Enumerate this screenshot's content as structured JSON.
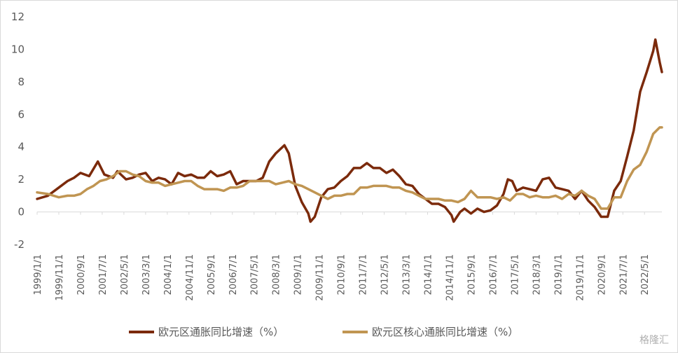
{
  "chart_data": {
    "type": "line",
    "title": "",
    "xlabel": "",
    "ylabel": "",
    "ylim": [
      -2,
      12
    ],
    "yticks": [
      -2,
      0,
      2,
      4,
      6,
      8,
      10,
      12
    ],
    "grid": false,
    "legend_position": "bottom",
    "x_tick_labels": [
      "1999/1/1",
      "1999/11/1",
      "2000/9/1",
      "2001/7/1",
      "2002/5/1",
      "2003/3/1",
      "2004/1/1",
      "2004/11/1",
      "2005/9/1",
      "2006/7/1",
      "2007/5/1",
      "2008/3/1",
      "2009/1/1",
      "2009/11/1",
      "2010/9/1",
      "2011/7/1",
      "2012/5/1",
      "2013/3/1",
      "2014/1/1",
      "2014/11/1",
      "2015/9/1",
      "2016/7/1",
      "2017/5/1",
      "2018/3/1",
      "2019/1/1",
      "2019/11/1",
      "2020/9/1",
      "2021/7/1",
      "2022/5/1"
    ],
    "series": [
      {
        "name": "欧元区通胀同比增速（%）",
        "color": "#7b2a0b",
        "points": [
          [
            "1999/1",
            0.8
          ],
          [
            "1999/6",
            1.0
          ],
          [
            "1999/11",
            1.5
          ],
          [
            "2000/3",
            1.9
          ],
          [
            "2000/6",
            2.1
          ],
          [
            "2000/9",
            2.4
          ],
          [
            "2001/1",
            2.2
          ],
          [
            "2001/5",
            3.1
          ],
          [
            "2001/8",
            2.3
          ],
          [
            "2001/12",
            2.1
          ],
          [
            "2002/2",
            2.5
          ],
          [
            "2002/6",
            2.0
          ],
          [
            "2002/9",
            2.1
          ],
          [
            "2002/12",
            2.3
          ],
          [
            "2003/3",
            2.4
          ],
          [
            "2003/6",
            1.9
          ],
          [
            "2003/9",
            2.1
          ],
          [
            "2003/12",
            2.0
          ],
          [
            "2004/3",
            1.7
          ],
          [
            "2004/6",
            2.4
          ],
          [
            "2004/9",
            2.2
          ],
          [
            "2004/12",
            2.3
          ],
          [
            "2005/3",
            2.1
          ],
          [
            "2005/6",
            2.1
          ],
          [
            "2005/9",
            2.5
          ],
          [
            "2005/12",
            2.2
          ],
          [
            "2006/3",
            2.3
          ],
          [
            "2006/6",
            2.5
          ],
          [
            "2006/9",
            1.7
          ],
          [
            "2006/12",
            1.9
          ],
          [
            "2007/3",
            1.9
          ],
          [
            "2007/6",
            1.9
          ],
          [
            "2007/9",
            2.1
          ],
          [
            "2007/12",
            3.1
          ],
          [
            "2008/3",
            3.6
          ],
          [
            "2008/7",
            4.1
          ],
          [
            "2008/9",
            3.6
          ],
          [
            "2008/12",
            1.6
          ],
          [
            "2009/3",
            0.6
          ],
          [
            "2009/6",
            -0.1
          ],
          [
            "2009/7",
            -0.6
          ],
          [
            "2009/9",
            -0.3
          ],
          [
            "2009/12",
            0.9
          ],
          [
            "2010/3",
            1.4
          ],
          [
            "2010/6",
            1.5
          ],
          [
            "2010/9",
            1.9
          ],
          [
            "2010/12",
            2.2
          ],
          [
            "2011/3",
            2.7
          ],
          [
            "2011/6",
            2.7
          ],
          [
            "2011/9",
            3.0
          ],
          [
            "2011/12",
            2.7
          ],
          [
            "2012/3",
            2.7
          ],
          [
            "2012/6",
            2.4
          ],
          [
            "2012/9",
            2.6
          ],
          [
            "2012/12",
            2.2
          ],
          [
            "2013/3",
            1.7
          ],
          [
            "2013/6",
            1.6
          ],
          [
            "2013/9",
            1.1
          ],
          [
            "2013/12",
            0.8
          ],
          [
            "2014/3",
            0.5
          ],
          [
            "2014/6",
            0.5
          ],
          [
            "2014/9",
            0.3
          ],
          [
            "2014/12",
            -0.2
          ],
          [
            "2015/1",
            -0.6
          ],
          [
            "2015/4",
            0.0
          ],
          [
            "2015/6",
            0.2
          ],
          [
            "2015/9",
            -0.1
          ],
          [
            "2015/12",
            0.2
          ],
          [
            "2016/3",
            0.0
          ],
          [
            "2016/6",
            0.1
          ],
          [
            "2016/9",
            0.4
          ],
          [
            "2016/12",
            1.1
          ],
          [
            "2017/2",
            2.0
          ],
          [
            "2017/4",
            1.9
          ],
          [
            "2017/6",
            1.3
          ],
          [
            "2017/9",
            1.5
          ],
          [
            "2017/12",
            1.4
          ],
          [
            "2018/3",
            1.3
          ],
          [
            "2018/6",
            2.0
          ],
          [
            "2018/9",
            2.1
          ],
          [
            "2018/12",
            1.5
          ],
          [
            "2019/3",
            1.4
          ],
          [
            "2019/6",
            1.3
          ],
          [
            "2019/9",
            0.8
          ],
          [
            "2019/12",
            1.3
          ],
          [
            "2020/3",
            0.7
          ],
          [
            "2020/6",
            0.3
          ],
          [
            "2020/9",
            -0.3
          ],
          [
            "2020/12",
            -0.3
          ],
          [
            "2021/3",
            1.3
          ],
          [
            "2021/6",
            1.9
          ],
          [
            "2021/9",
            3.4
          ],
          [
            "2021/12",
            5.0
          ],
          [
            "2022/3",
            7.4
          ],
          [
            "2022/6",
            8.6
          ],
          [
            "2022/9",
            9.9
          ],
          [
            "2022/10",
            10.6
          ],
          [
            "2022/12",
            9.2
          ],
          [
            "2023/1",
            8.6
          ]
        ]
      },
      {
        "name": "欧元区核心通胀同比增速（%）",
        "color": "#c09552",
        "points": [
          [
            "1999/1",
            1.2
          ],
          [
            "1999/6",
            1.1
          ],
          [
            "1999/11",
            0.9
          ],
          [
            "2000/3",
            1.0
          ],
          [
            "2000/6",
            1.0
          ],
          [
            "2000/9",
            1.1
          ],
          [
            "2000/12",
            1.4
          ],
          [
            "2001/3",
            1.6
          ],
          [
            "2001/6",
            1.9
          ],
          [
            "2001/9",
            2.0
          ],
          [
            "2001/12",
            2.2
          ],
          [
            "2002/3",
            2.5
          ],
          [
            "2002/6",
            2.5
          ],
          [
            "2002/9",
            2.3
          ],
          [
            "2002/12",
            2.2
          ],
          [
            "2003/3",
            1.9
          ],
          [
            "2003/6",
            1.8
          ],
          [
            "2003/9",
            1.8
          ],
          [
            "2003/12",
            1.6
          ],
          [
            "2004/3",
            1.7
          ],
          [
            "2004/6",
            1.8
          ],
          [
            "2004/9",
            1.9
          ],
          [
            "2004/12",
            1.9
          ],
          [
            "2005/3",
            1.6
          ],
          [
            "2005/6",
            1.4
          ],
          [
            "2005/9",
            1.4
          ],
          [
            "2005/12",
            1.4
          ],
          [
            "2006/3",
            1.3
          ],
          [
            "2006/6",
            1.5
          ],
          [
            "2006/9",
            1.5
          ],
          [
            "2006/12",
            1.6
          ],
          [
            "2007/3",
            1.9
          ],
          [
            "2007/6",
            1.9
          ],
          [
            "2007/9",
            1.9
          ],
          [
            "2007/12",
            1.9
          ],
          [
            "2008/3",
            1.7
          ],
          [
            "2008/6",
            1.8
          ],
          [
            "2008/9",
            1.9
          ],
          [
            "2008/12",
            1.7
          ],
          [
            "2009/3",
            1.6
          ],
          [
            "2009/6",
            1.4
          ],
          [
            "2009/9",
            1.2
          ],
          [
            "2009/12",
            1.0
          ],
          [
            "2010/3",
            0.8
          ],
          [
            "2010/6",
            1.0
          ],
          [
            "2010/9",
            1.0
          ],
          [
            "2010/12",
            1.1
          ],
          [
            "2011/3",
            1.1
          ],
          [
            "2011/6",
            1.5
          ],
          [
            "2011/9",
            1.5
          ],
          [
            "2011/12",
            1.6
          ],
          [
            "2012/3",
            1.6
          ],
          [
            "2012/6",
            1.6
          ],
          [
            "2012/9",
            1.5
          ],
          [
            "2012/12",
            1.5
          ],
          [
            "2013/3",
            1.3
          ],
          [
            "2013/6",
            1.2
          ],
          [
            "2013/9",
            1.0
          ],
          [
            "2013/12",
            0.8
          ],
          [
            "2014/3",
            0.8
          ],
          [
            "2014/6",
            0.8
          ],
          [
            "2014/9",
            0.7
          ],
          [
            "2014/12",
            0.7
          ],
          [
            "2015/3",
            0.6
          ],
          [
            "2015/6",
            0.8
          ],
          [
            "2015/9",
            1.3
          ],
          [
            "2015/12",
            0.9
          ],
          [
            "2016/3",
            0.9
          ],
          [
            "2016/6",
            0.9
          ],
          [
            "2016/9",
            0.8
          ],
          [
            "2016/12",
            0.9
          ],
          [
            "2017/3",
            0.7
          ],
          [
            "2017/6",
            1.1
          ],
          [
            "2017/9",
            1.1
          ],
          [
            "2017/12",
            0.9
          ],
          [
            "2018/3",
            1.0
          ],
          [
            "2018/6",
            0.9
          ],
          [
            "2018/9",
            0.9
          ],
          [
            "2018/12",
            1.0
          ],
          [
            "2019/3",
            0.8
          ],
          [
            "2019/6",
            1.1
          ],
          [
            "2019/9",
            1.0
          ],
          [
            "2019/12",
            1.3
          ],
          [
            "2020/3",
            1.0
          ],
          [
            "2020/6",
            0.8
          ],
          [
            "2020/9",
            0.2
          ],
          [
            "2020/12",
            0.2
          ],
          [
            "2021/3",
            0.9
          ],
          [
            "2021/6",
            0.9
          ],
          [
            "2021/9",
            1.9
          ],
          [
            "2021/12",
            2.6
          ],
          [
            "2022/3",
            2.9
          ],
          [
            "2022/6",
            3.7
          ],
          [
            "2022/9",
            4.8
          ],
          [
            "2022/12",
            5.2
          ],
          [
            "2023/1",
            5.2
          ]
        ]
      }
    ]
  },
  "watermark": "格隆汇"
}
